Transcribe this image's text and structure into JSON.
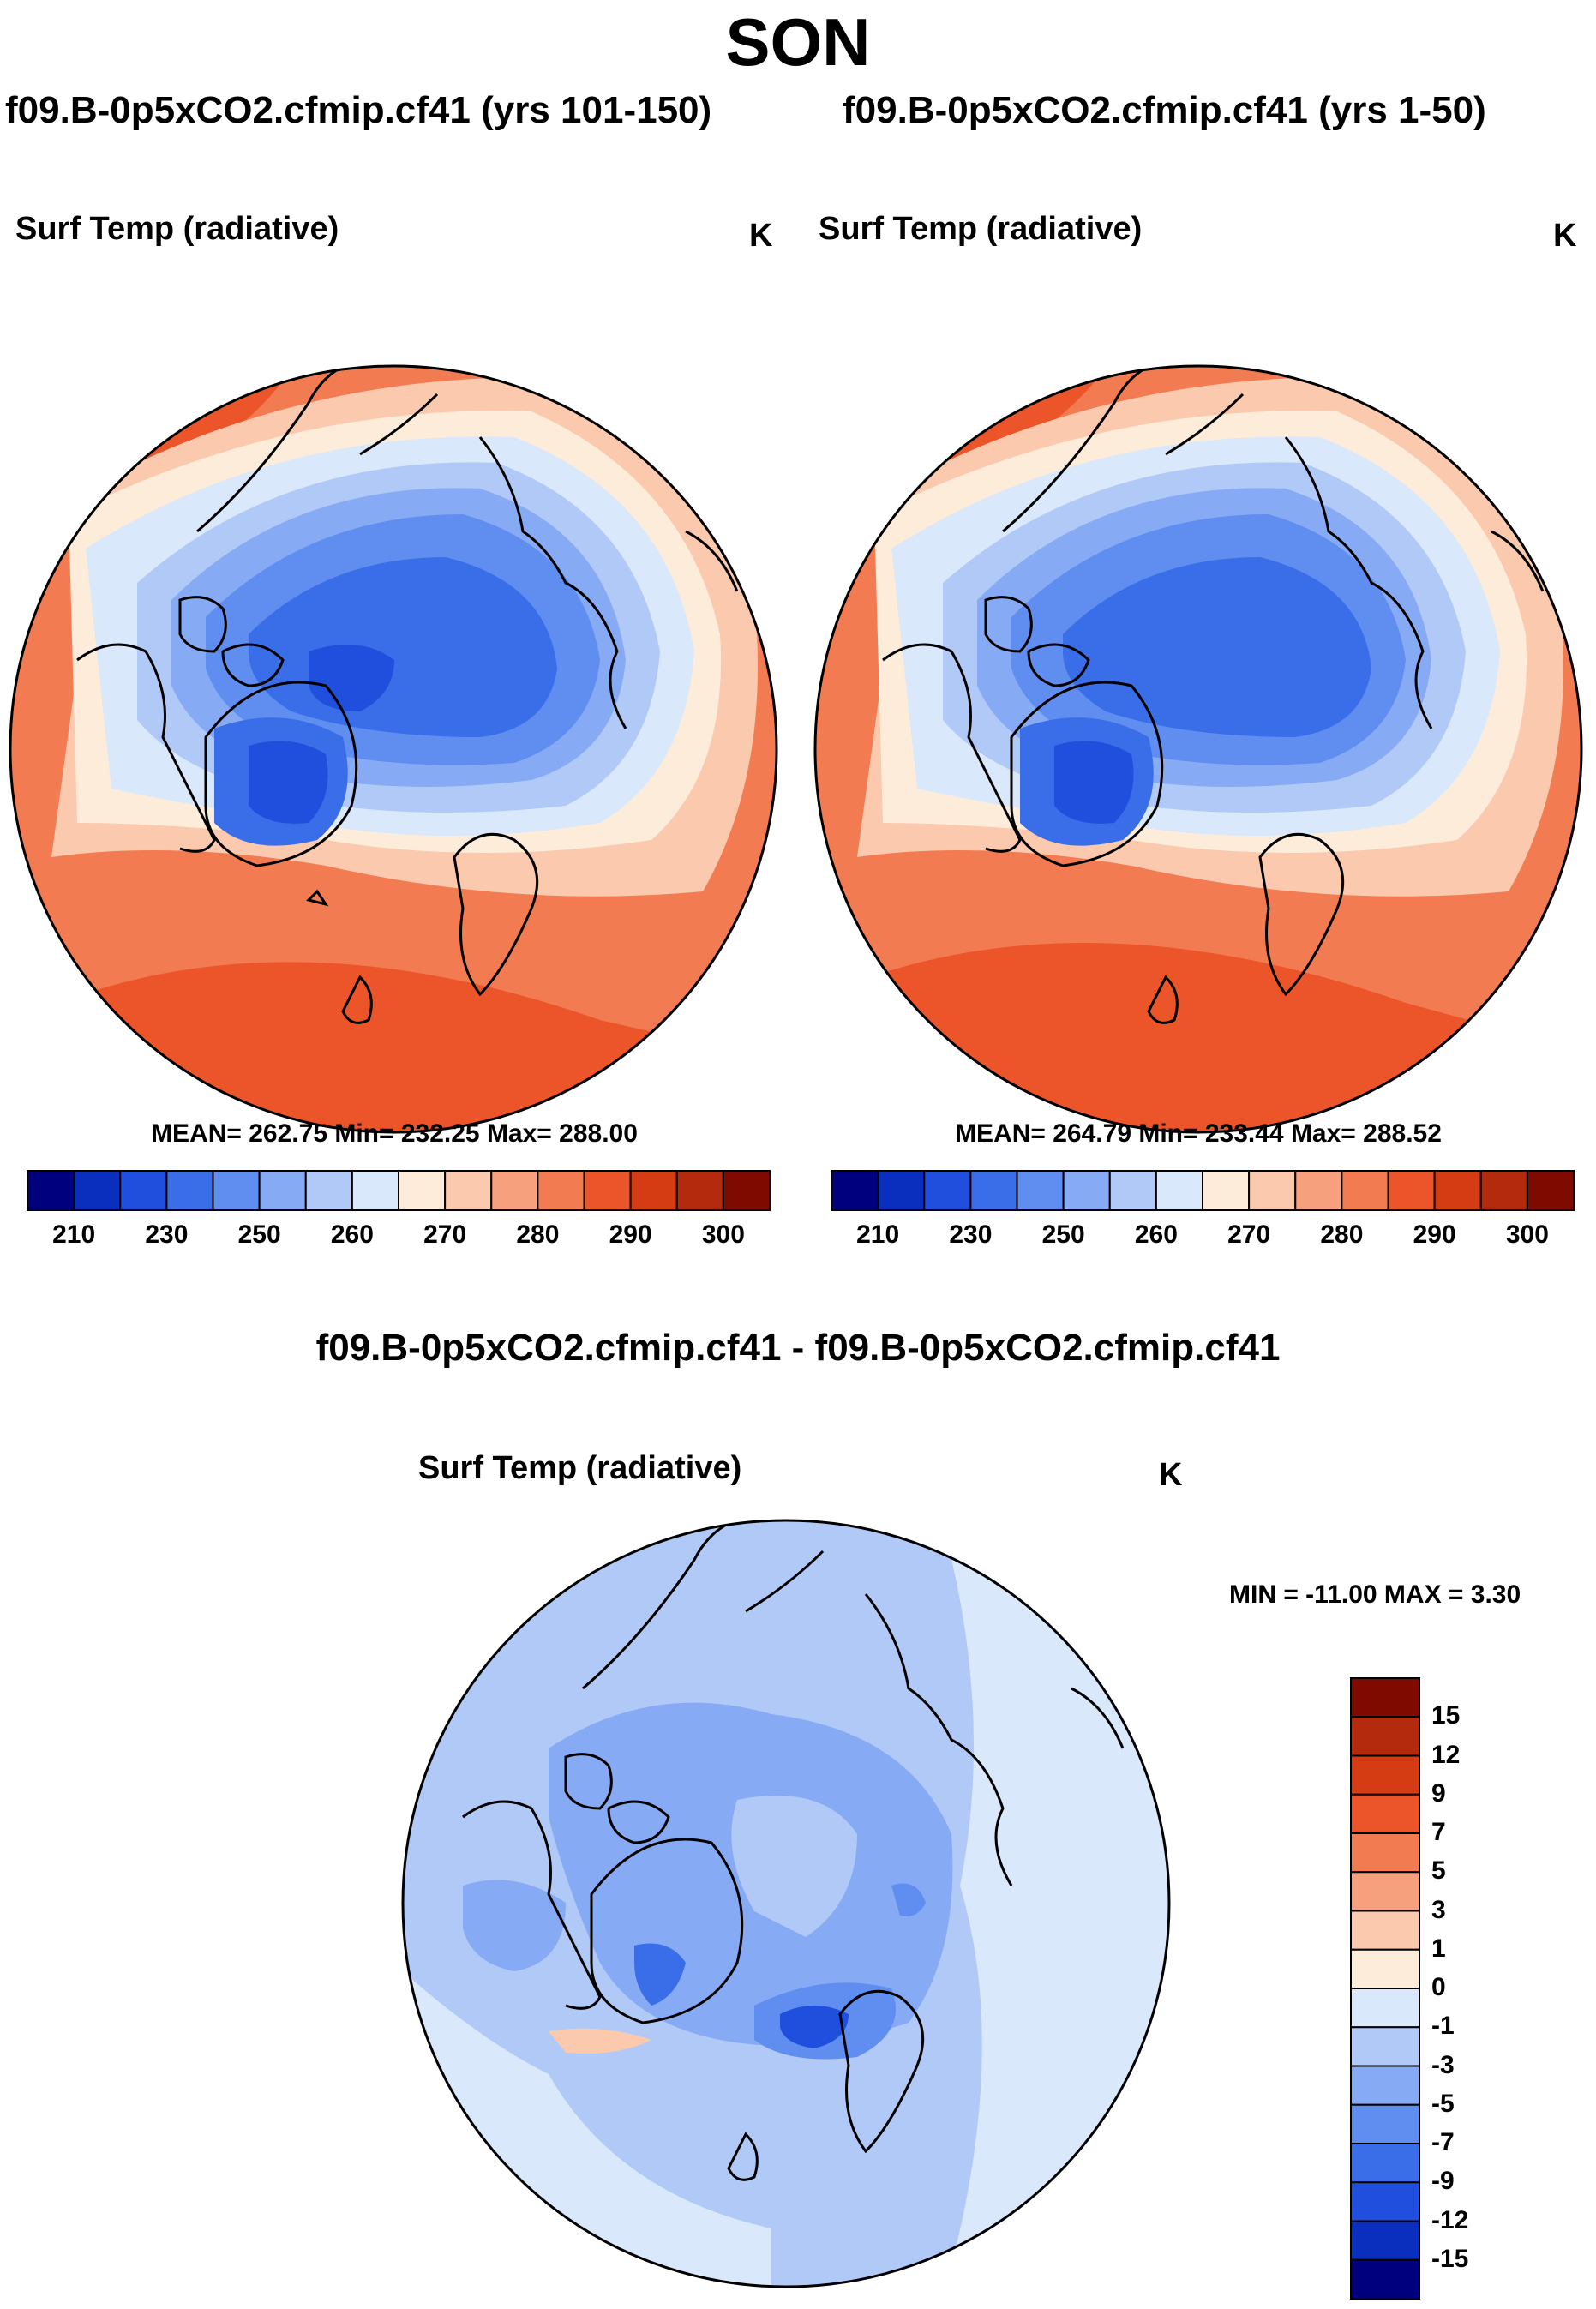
{
  "season": "SON",
  "panels": [
    {
      "case_title": "f09.B-0p5xCO2.cfmip.cf41 (yrs 101-150)",
      "variable": "Surf Temp (radiative)",
      "units": "K",
      "stats": "MEAN= 262.75  Min= 232.25  Max= 288.00"
    },
    {
      "case_title": "f09.B-0p5xCO2.cfmip.cf41 (yrs 1-50)",
      "variable": "Surf Temp (radiative)",
      "units": "K",
      "stats": "MEAN= 264.79  Min= 233.44  Max= 288.52"
    }
  ],
  "difference": {
    "case_title": "f09.B-0p5xCO2.cfmip.cf41 - f09.B-0p5xCO2.cfmip.cf41",
    "variable": "Surf Temp (radiative)",
    "units": "K",
    "stats": "MIN = -11.00 MAX =   3.30"
  },
  "chart_data": [
    {
      "type": "heatmap",
      "projection": "north polar stereographic",
      "title": "f09.B-0p5xCO2.cfmip.cf41 (yrs 101-150)",
      "subtitle": "Surf Temp (radiative)",
      "units": "K",
      "mean": 262.75,
      "min": 232.25,
      "max": 288.0,
      "colorbar": {
        "orientation": "horizontal",
        "levels": [
          210,
          230,
          250,
          260,
          270,
          280,
          290,
          300
        ],
        "colors": [
          "#00007f",
          "#0a2ebd",
          "#1f4fdc",
          "#3a6ee8",
          "#5f8df0",
          "#86aaf4",
          "#b1c9f7",
          "#d9e8fb",
          "#fdecd9",
          "#fac9ae",
          "#f6a07d",
          "#f37b52",
          "#ec5529",
          "#d53c14",
          "#b42a0c",
          "#7f0b00"
        ]
      }
    },
    {
      "type": "heatmap",
      "projection": "north polar stereographic",
      "title": "f09.B-0p5xCO2.cfmip.cf41 (yrs 1-50)",
      "subtitle": "Surf Temp (radiative)",
      "units": "K",
      "mean": 264.79,
      "min": 233.44,
      "max": 288.52,
      "colorbar": {
        "orientation": "horizontal",
        "levels": [
          210,
          230,
          250,
          260,
          270,
          280,
          290,
          300
        ],
        "colors": [
          "#00007f",
          "#0a2ebd",
          "#1f4fdc",
          "#3a6ee8",
          "#5f8df0",
          "#86aaf4",
          "#b1c9f7",
          "#d9e8fb",
          "#fdecd9",
          "#fac9ae",
          "#f6a07d",
          "#f37b52",
          "#ec5529",
          "#d53c14",
          "#b42a0c",
          "#7f0b00"
        ]
      }
    },
    {
      "type": "heatmap",
      "projection": "north polar stereographic",
      "title": "f09.B-0p5xCO2.cfmip.cf41 - f09.B-0p5xCO2.cfmip.cf41",
      "subtitle": "Surf Temp (radiative)",
      "units": "K",
      "min": -11.0,
      "max": 3.3,
      "colorbar": {
        "orientation": "vertical",
        "levels": [
          15,
          12,
          9,
          7,
          5,
          3,
          1,
          0,
          -1,
          -3,
          -5,
          -7,
          -9,
          -12,
          -15
        ],
        "colors": [
          "#7f0b00",
          "#b42a0c",
          "#d53c14",
          "#ec5529",
          "#f37b52",
          "#f6a07d",
          "#fac9ae",
          "#fdecd9",
          "#d9e8fb",
          "#b1c9f7",
          "#86aaf4",
          "#5f8df0",
          "#3a6ee8",
          "#1f4fdc",
          "#0a2ebd",
          "#00007f"
        ]
      }
    }
  ]
}
